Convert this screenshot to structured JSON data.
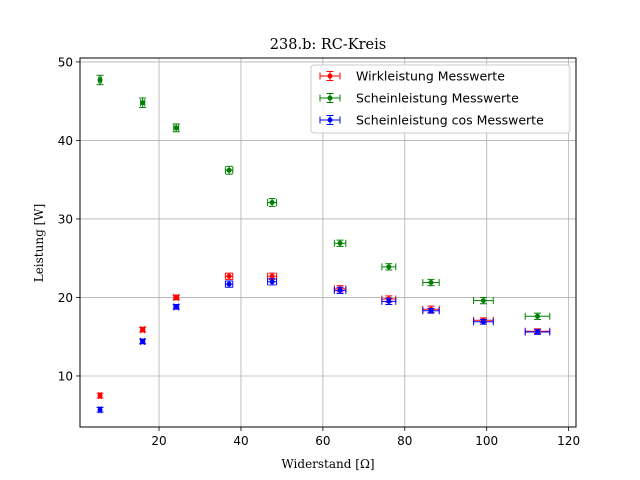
{
  "chart_data": {
    "type": "scatter",
    "title": "238.b: RC-Kreis",
    "xlabel": "Widerstand [Ω]",
    "ylabel": "Leistung [W]",
    "xlim": [
      0.7,
      121.8
    ],
    "ylim": [
      3.5,
      50.5
    ],
    "xticks": [
      20,
      40,
      60,
      80,
      100,
      120
    ],
    "yticks": [
      10,
      20,
      30,
      40,
      50
    ],
    "grid": true,
    "legend_position": "top-right",
    "series": [
      {
        "name": "Wirkleistung Messwerte",
        "color": "#ff0000",
        "x": [
          5.6,
          16.0,
          24.2,
          37.1,
          47.6,
          64.2,
          76.1,
          86.4,
          99.2,
          112.4
        ],
        "y": [
          7.5,
          15.9,
          20.0,
          22.7,
          22.7,
          21.1,
          19.8,
          18.5,
          17.1,
          15.7
        ],
        "xerr": [
          0.3,
          0.5,
          0.6,
          0.9,
          1.1,
          1.4,
          1.7,
          2.0,
          2.4,
          3.0
        ],
        "yerr": [
          0.3,
          0.3,
          0.3,
          0.4,
          0.4,
          0.4,
          0.4,
          0.4,
          0.3,
          0.3
        ]
      },
      {
        "name": "Scheinleistung Messwerte",
        "color": "#008000",
        "x": [
          5.6,
          16.0,
          24.2,
          37.1,
          47.6,
          64.2,
          76.1,
          86.4,
          99.2,
          112.4
        ],
        "y": [
          47.7,
          44.8,
          41.6,
          36.2,
          32.1,
          26.9,
          23.9,
          21.9,
          19.6,
          17.6
        ],
        "xerr": [
          0.3,
          0.5,
          0.6,
          0.9,
          1.1,
          1.4,
          1.7,
          2.0,
          2.4,
          3.0
        ],
        "yerr": [
          0.6,
          0.6,
          0.5,
          0.5,
          0.5,
          0.4,
          0.4,
          0.4,
          0.4,
          0.4
        ]
      },
      {
        "name": "Scheinleistung cos Messwerte",
        "color": "#0000ff",
        "x": [
          5.6,
          16.0,
          24.2,
          37.1,
          47.6,
          64.2,
          76.1,
          86.4,
          99.2,
          112.4
        ],
        "y": [
          5.7,
          14.4,
          18.8,
          21.7,
          22.0,
          20.9,
          19.5,
          18.3,
          16.9,
          15.6
        ],
        "xerr": [
          0.3,
          0.5,
          0.6,
          0.9,
          1.1,
          1.4,
          1.7,
          2.0,
          2.4,
          3.0
        ],
        "yerr": [
          0.3,
          0.3,
          0.3,
          0.4,
          0.4,
          0.4,
          0.4,
          0.3,
          0.3,
          0.3
        ]
      }
    ]
  }
}
